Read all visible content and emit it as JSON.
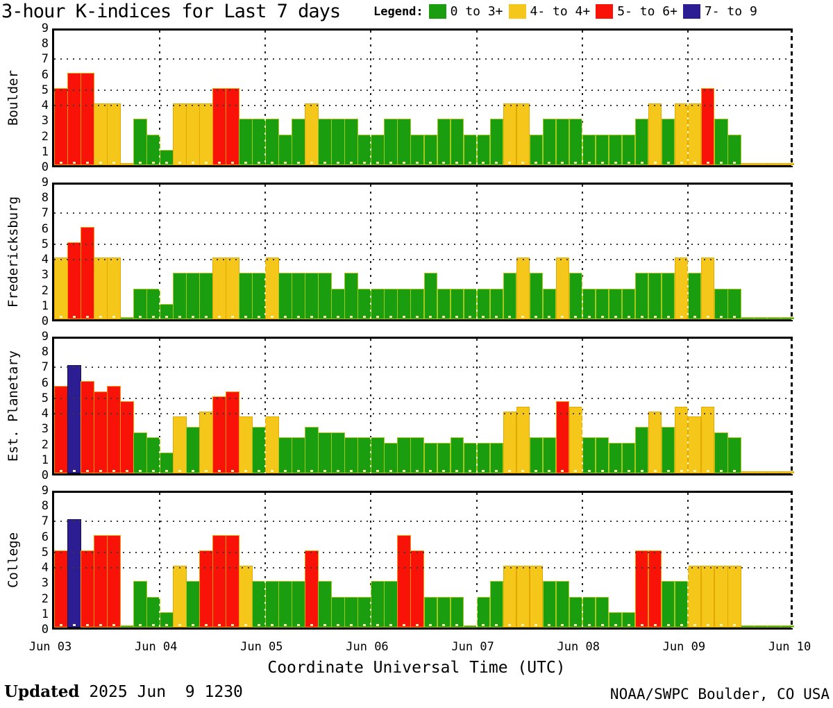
{
  "title": "3-hour K-indices for Last 7 days",
  "legend": {
    "label": "Legend:",
    "items": [
      {
        "label": "0 to 3+",
        "color_name": "green",
        "color": "#1a9e0f"
      },
      {
        "label": "4- to 4+",
        "color_name": "yellow",
        "color": "#f5c71a"
      },
      {
        "label": "5- to 6+",
        "color_name": "red",
        "color": "#f91208"
      },
      {
        "label": "7- to 9",
        "color_name": "navy",
        "color": "#2c1d92"
      }
    ]
  },
  "colors": {
    "green": {
      "fill": "#1a9e0f",
      "edge": "#a4c81e"
    },
    "yellow": {
      "fill": "#f5c71a",
      "edge": "#e0a800"
    },
    "red": {
      "fill": "#f91208",
      "edge": "#f59a00"
    },
    "navy": {
      "fill": "#2c1d92",
      "edge": "#141052"
    }
  },
  "x_axis": {
    "title": "Coordinate Universal Time (UTC)",
    "day_labels": [
      "Jun 03",
      "Jun 04",
      "Jun 05",
      "Jun 06",
      "Jun 07",
      "Jun 08",
      "Jun 09",
      "Jun 10"
    ]
  },
  "y_axis": {
    "ticks": [
      9,
      8,
      7,
      6,
      5,
      4,
      3,
      2,
      1,
      0
    ],
    "dotted_lines_at": [
      4,
      5,
      7
    ]
  },
  "footer": {
    "updated_label": "Updated",
    "updated_value": "2025 Jun  9 1230",
    "credit": "NOAA/SWPC Boulder, CO USA"
  },
  "chart_data": {
    "type": "bar",
    "title": "3-hour K-indices for Last 7 days",
    "ylim": [
      0,
      9
    ],
    "bars_per_day": 8,
    "bar_interval_hours": 3,
    "day_labels": [
      "Jun 03",
      "Jun 04",
      "Jun 05",
      "Jun 06",
      "Jun 07",
      "Jun 08",
      "Jun 09",
      "Jun 10"
    ],
    "color_rule": "value 0-3.33 green, 3.67-4.33 yellow, 4.67-6.33 red, 6.67-9 navy, 0 drawn as tiny stub",
    "series": [
      {
        "station": "Boulder",
        "stub_color": "yellow",
        "values": [
          5,
          6,
          6,
          4,
          4,
          0,
          3,
          2,
          1,
          4,
          4,
          4,
          5,
          5,
          3,
          3,
          3,
          2,
          3,
          4,
          3,
          3,
          3,
          2,
          2,
          3,
          3,
          2,
          2,
          3,
          3,
          2,
          2,
          3,
          4,
          4,
          2,
          3,
          3,
          3,
          2,
          2,
          2,
          2,
          3,
          4,
          3,
          4,
          4,
          5,
          3,
          2,
          0,
          0,
          0,
          0
        ]
      },
      {
        "station": "Fredericksburg",
        "stub_color": "green",
        "values": [
          4,
          5,
          6,
          4,
          4,
          0,
          2,
          2,
          1,
          3,
          3,
          3,
          4,
          4,
          3,
          3,
          4,
          3,
          3,
          3,
          3,
          2,
          3,
          2,
          2,
          2,
          2,
          2,
          3,
          2,
          2,
          2,
          2,
          2,
          3,
          4,
          3,
          2,
          4,
          3,
          2,
          2,
          2,
          2,
          3,
          3,
          3,
          4,
          3,
          4,
          2,
          2,
          0,
          0,
          0,
          0
        ]
      },
      {
        "station": "Est. Planetary",
        "stub_color": "yellow",
        "values": [
          5.67,
          7,
          6,
          5.33,
          5.67,
          4.67,
          2.67,
          2.33,
          1.33,
          3.67,
          3,
          4,
          5,
          5.33,
          3.67,
          3,
          3.67,
          2.33,
          2.33,
          3,
          2.67,
          2.67,
          2.33,
          2.33,
          2.33,
          2,
          2.33,
          2.33,
          2,
          2,
          2.33,
          2,
          2,
          2,
          4,
          4.33,
          2.33,
          2.33,
          4.67,
          4.33,
          2.33,
          2.33,
          2,
          2,
          3,
          4,
          3,
          4.33,
          3.67,
          4.33,
          2.67,
          2.33,
          0,
          0,
          0,
          0
        ]
      },
      {
        "station": "College",
        "stub_color": "green",
        "values": [
          5,
          7,
          5,
          6,
          6,
          0,
          3,
          2,
          1,
          4,
          3,
          5,
          6,
          6,
          4,
          3,
          3,
          3,
          3,
          5,
          3,
          2,
          2,
          2,
          3,
          3,
          6,
          5,
          2,
          2,
          2,
          0,
          2,
          3,
          4,
          4,
          4,
          3,
          3,
          2,
          2,
          2,
          1,
          1,
          5,
          5,
          3,
          3,
          4,
          4,
          4,
          4,
          0,
          0,
          0,
          0
        ]
      }
    ]
  }
}
